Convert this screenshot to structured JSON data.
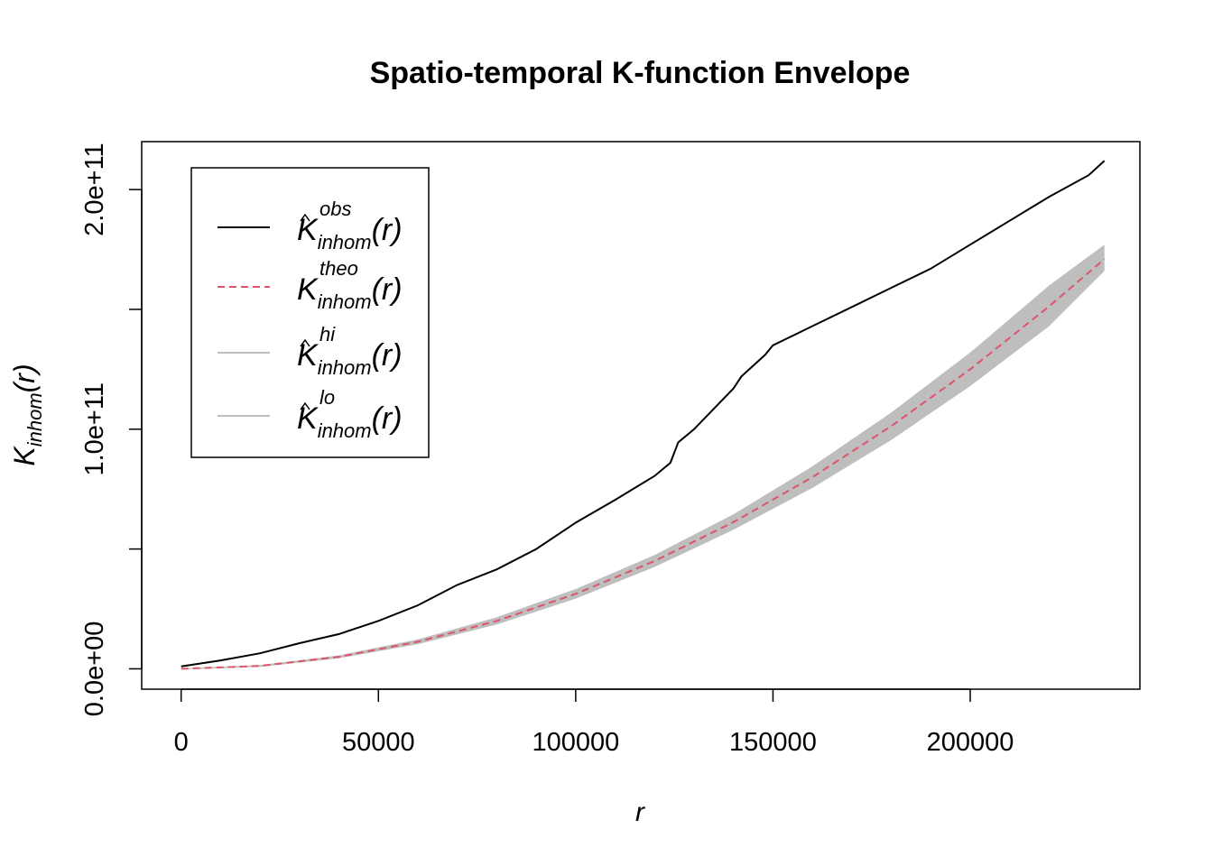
{
  "chart_data": {
    "type": "line",
    "title": "Spatio-temporal K-function Envelope",
    "xlabel": "r",
    "ylabel": {
      "base": "K",
      "sub": "inhom",
      "arg": "(r)"
    },
    "xlim": [
      -10000,
      243000
    ],
    "ylim": [
      -8500000000.0,
      220000000000.0
    ],
    "x_ticks": [
      {
        "value": 0,
        "label": "0"
      },
      {
        "value": 50000,
        "label": "50000"
      },
      {
        "value": 100000,
        "label": "100000"
      },
      {
        "value": 150000,
        "label": "150000"
      },
      {
        "value": 200000,
        "label": "200000"
      }
    ],
    "y_ticks": [
      {
        "value": 0,
        "label": "0.0e+00"
      },
      {
        "value": 50000000000.0,
        "label": ""
      },
      {
        "value": 100000000000.0,
        "label": "1.0e+11"
      },
      {
        "value": 150000000000.0,
        "label": ""
      },
      {
        "value": 200000000000.0,
        "label": "2.0e+11"
      }
    ],
    "grid": false,
    "legend_position": "top-left",
    "series": [
      {
        "key": "obs",
        "color": "#000000",
        "style": "solid",
        "x": [
          0,
          10000,
          20000,
          30000,
          40000,
          50000,
          60000,
          70000,
          80000,
          90000,
          100000,
          110000,
          120000,
          124000,
          126000,
          130000,
          140000,
          142000,
          148000,
          150000,
          160000,
          170000,
          180000,
          190000,
          200000,
          210000,
          220000,
          230000,
          234000
        ],
        "y": [
          1000000000.0,
          3500000000.0,
          6500000000.0,
          10700000000.0,
          14500000000.0,
          20000000000.0,
          26500000000.0,
          35000000000.0,
          41500000000.0,
          50000000000.0,
          61000000000.0,
          70500000000.0,
          80500000000.0,
          86000000000.0,
          94500000000.0,
          100000000000.0,
          117000000000.0,
          122000000000.0,
          131000000000.0,
          135000000000.0,
          143000000000.0,
          151000000000.0,
          159000000000.0,
          167000000000.0,
          177000000000.0,
          187000000000.0,
          197000000000.0,
          206000000000.0,
          212000000000.0
        ]
      },
      {
        "key": "theo",
        "color": "#df536b",
        "style": "dashed",
        "x": [
          0,
          20000,
          40000,
          60000,
          80000,
          100000,
          120000,
          140000,
          160000,
          180000,
          200000,
          220000,
          234000
        ],
        "y": [
          0,
          1200000000.0,
          5000000000.0,
          11300000000.0,
          20000000000.0,
          31300000000.0,
          45000000000.0,
          61200000000.0,
          80000000000.0,
          101300000000.0,
          125000000000.0,
          151300000000.0,
          171000000000.0
        ]
      }
    ],
    "envelope": {
      "color": "#bebebe",
      "x": [
        0,
        20000,
        40000,
        60000,
        80000,
        100000,
        120000,
        140000,
        160000,
        180000,
        200000,
        220000,
        234000
      ],
      "hi": [
        200000000.0,
        1600000000.0,
        5600000000.0,
        12300000000.0,
        21500000000.0,
        33300000000.0,
        47500000000.0,
        64500000000.0,
        84500000000.0,
        107000000000.0,
        132000000000.0,
        160000000000.0,
        177000000000.0
      ],
      "lo": [
        -200000000.0,
        800000000.0,
        4400000000.0,
        10300000000.0,
        18500000000.0,
        29300000000.0,
        42500000000.0,
        58000000000.0,
        75500000000.0,
        95500000000.0,
        118000000000.0,
        143000000000.0,
        166000000000.0
      ]
    },
    "legend": [
      {
        "sup": "obs",
        "sub": "inhom",
        "arg": "(r)",
        "hat": true,
        "color": "#000000",
        "style": "solid"
      },
      {
        "sup": "theo",
        "sub": "inhom",
        "arg": "(r)",
        "hat": false,
        "color": "#df536b",
        "style": "dashed"
      },
      {
        "sup": "hi",
        "sub": "inhom",
        "arg": "(r)",
        "hat": true,
        "color": "#bebebe",
        "style": "solid"
      },
      {
        "sup": "lo",
        "sub": "inhom",
        "arg": "(r)",
        "hat": true,
        "color": "#bebebe",
        "style": "solid"
      }
    ]
  }
}
